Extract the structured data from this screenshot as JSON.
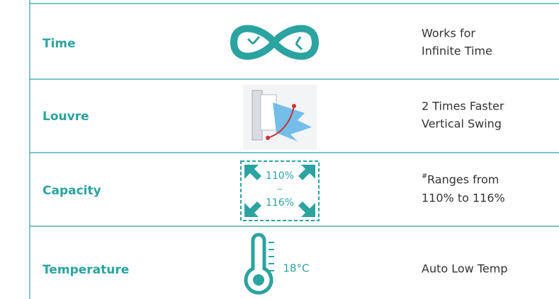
{
  "rows": [
    {
      "label": "Time",
      "description": [
        "Works for",
        "Infinite Time"
      ]
    },
    {
      "label": "Louvre",
      "description": [
        "2 Times Faster",
        "Vertical Swing"
      ]
    },
    {
      "label": "Capacity",
      "icon_text": [
        "110%",
        "~",
        "116%"
      ],
      "note_mark": "#",
      "description": [
        "Ranges from",
        "110% to 116%"
      ]
    },
    {
      "label": "Temperature",
      "icon_text": [
        "18°C"
      ],
      "description": [
        "Auto Low Temp"
      ]
    }
  ]
}
